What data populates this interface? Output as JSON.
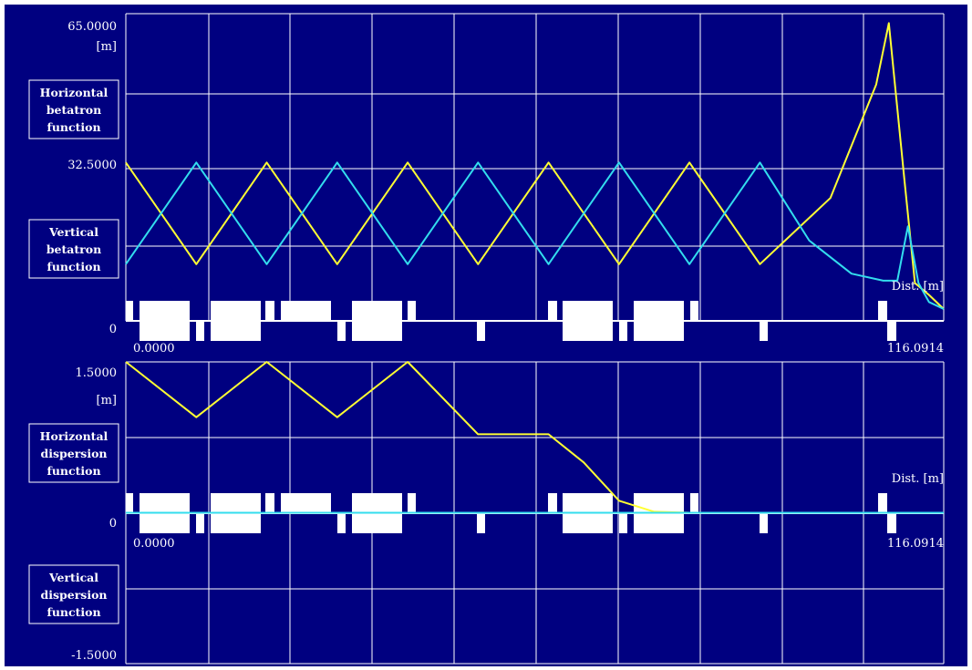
{
  "colors": {
    "background": "#000080",
    "grid": "#ffffff",
    "horizontal_curve": "#ffff33",
    "vertical_curve": "#33ddee",
    "magnet": "#ffffff",
    "text": "#ffffff"
  },
  "chart_data": [
    {
      "type": "line",
      "title": "",
      "xlabel": "Dist. [m]",
      "ylabel": "[m]",
      "ylim": [
        0,
        65.0
      ],
      "xlim": [
        0,
        116.0914
      ],
      "ytick_labels": [
        "65.0000",
        "32.5000",
        "0"
      ],
      "xtick_labels": [
        "0.0000",
        "116.0914"
      ],
      "unit_label": "[m]",
      "grid": true,
      "legend_boxes": [
        [
          "Horizontal",
          "betatron",
          "function"
        ],
        [
          "Vertical",
          "betatron",
          "function"
        ]
      ],
      "series": [
        {
          "name": "Horizontal betatron function",
          "color": "#ffff33",
          "x": [
            0.0,
            10.0,
            20.0,
            30.0,
            40.0,
            50.0,
            60.0,
            70.0,
            80.0,
            90.0,
            100.0,
            106.5,
            108.3,
            110.5,
            112.0,
            114.0,
            116.09
          ],
          "y": [
            33.5,
            12.0,
            33.5,
            12.0,
            33.5,
            12.0,
            33.5,
            12.0,
            33.5,
            12.0,
            26.0,
            50.0,
            63.0,
            30.0,
            8.0,
            5.5,
            2.5
          ]
        },
        {
          "name": "Vertical betatron function",
          "color": "#33ddee",
          "x": [
            0.0,
            10.0,
            20.0,
            30.0,
            40.0,
            50.0,
            60.0,
            70.0,
            80.0,
            90.0,
            97.0,
            103.0,
            107.5,
            109.5,
            111.0,
            112.5,
            114.0,
            116.09
          ],
          "y": [
            12.0,
            33.5,
            12.0,
            33.5,
            12.0,
            33.5,
            12.0,
            33.5,
            12.0,
            33.5,
            17.0,
            10.0,
            8.5,
            8.5,
            20.0,
            8.0,
            4.0,
            2.5
          ]
        }
      ]
    },
    {
      "type": "line",
      "title": "",
      "xlabel": "Dist. [m]",
      "ylabel": "[m]",
      "ylim": [
        -1.5,
        1.5
      ],
      "xlim": [
        0,
        116.0914
      ],
      "ytick_labels": [
        "1.5000",
        "0",
        "-1.5000"
      ],
      "xtick_labels": [
        "0.0000",
        "116.0914"
      ],
      "unit_label": "[m]",
      "grid": true,
      "legend_boxes": [
        [
          "Horizontal",
          "dispersion",
          "function"
        ],
        [
          "Vertical",
          "dispersion",
          "function"
        ]
      ],
      "series": [
        {
          "name": "Horizontal dispersion function",
          "color": "#ffff33",
          "x": [
            0.0,
            10.0,
            20.0,
            30.0,
            40.0,
            50.0,
            55.0,
            60.0,
            65.0,
            70.0,
            75.0,
            80.0,
            116.09
          ],
          "y": [
            1.5,
            0.95,
            1.5,
            0.95,
            1.5,
            0.78,
            0.78,
            0.78,
            0.5,
            0.12,
            0.01,
            0.0,
            0.0
          ]
        },
        {
          "name": "Vertical dispersion function",
          "color": "#33ddee",
          "x": [
            0.0,
            116.09
          ],
          "y": [
            0.0,
            0.0
          ]
        }
      ]
    }
  ]
}
